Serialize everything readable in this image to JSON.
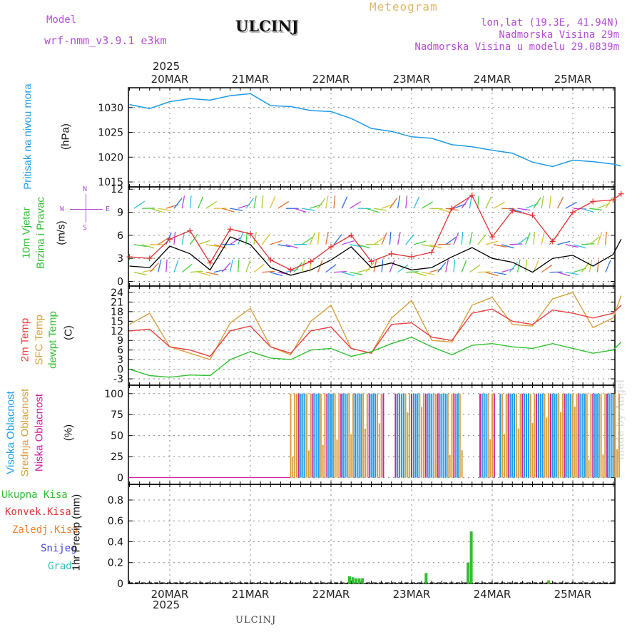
{
  "header": {
    "model_label": "Model",
    "model_name": "wrf-nmm_v3.9.1 e3km",
    "station": "ULCINJ",
    "meteogram": "Meteogram",
    "lonlat": "lon,lat (19.3E, 41.94N)",
    "elevation": "Nadmorska Visina 29m",
    "model_elevation": "Nadmorska Visina u modelu 29.0839m",
    "year_top": "2025",
    "year_bottom": "2025",
    "footer_station": "ULCINJ",
    "credit": "made by Angel"
  },
  "colors": {
    "pressure": "#1e9be6",
    "wind_speed": "#000000",
    "gust": "#e03030",
    "t2m": "#e84040",
    "sfc": "#d8a040",
    "dew": "#30c030",
    "high": "#1e9be6",
    "mid": "#d8a040",
    "low": "#d020a0",
    "precip_total": "#30c030",
    "precip_conv": "#e03030",
    "precip_frz": "#f08030",
    "precip_snow": "#4040e0",
    "precip_grad": "#30c0c0"
  },
  "chart_data": [
    {
      "type": "line",
      "title": "Pritisak na nivou mora",
      "ylabel": "(hPa)",
      "x_dates": [
        "20MAR",
        "21MAR",
        "22MAR",
        "23MAR",
        "24MAR",
        "25MAR"
      ],
      "yticks": [
        1015,
        1020,
        1025,
        1030
      ],
      "ylim": [
        1014,
        1034
      ],
      "series": [
        {
          "name": "pressure",
          "x": [
            0.0,
            0.25,
            0.5,
            0.75,
            1.0,
            1.25,
            1.5,
            1.75,
            2.0,
            2.25,
            2.5,
            2.75,
            3.0,
            3.25,
            3.5,
            3.75,
            4.0,
            4.25,
            4.5,
            4.75,
            5.0,
            5.25,
            5.5,
            5.75,
            6.0,
            6.1
          ],
          "values": [
            1030.6,
            1029.8,
            1031.2,
            1031.8,
            1031.5,
            1032.4,
            1032.8,
            1030.4,
            1030.2,
            1029.4,
            1029.2,
            1027.8,
            1025.8,
            1025.2,
            1024.1,
            1023.8,
            1022.5,
            1022.1,
            1021.4,
            1020.8,
            1019.0,
            1018.1,
            1019.4,
            1019.1,
            1018.6,
            1018.2
          ]
        }
      ]
    },
    {
      "type": "line",
      "title": "10m Vjetar Brzina i Pravac",
      "ylabel": "(m/s)",
      "compass": [
        "N",
        "W",
        "E",
        "S"
      ],
      "yticks": [
        0,
        3,
        6,
        9,
        12
      ],
      "ylim": [
        -0.6,
        12.3
      ],
      "series": [
        {
          "name": "wind speed",
          "x": [
            0.0,
            0.25,
            0.5,
            0.75,
            1.0,
            1.25,
            1.5,
            1.75,
            2.0,
            2.25,
            2.5,
            2.75,
            3.0,
            3.25,
            3.5,
            3.75,
            4.0,
            4.25,
            4.5,
            4.75,
            5.0,
            5.25,
            5.5,
            5.75,
            6.0,
            6.1
          ],
          "values": [
            2.0,
            1.8,
            4.6,
            3.6,
            1.5,
            5.8,
            4.8,
            1.8,
            0.8,
            1.5,
            2.8,
            4.5,
            1.8,
            2.4,
            1.5,
            1.8,
            3.2,
            4.4,
            3.0,
            2.5,
            1.2,
            3.0,
            3.4,
            2.0,
            3.5,
            5.5
          ]
        },
        {
          "name": "gust",
          "x": [
            0.0,
            0.25,
            0.5,
            0.75,
            1.0,
            1.25,
            1.5,
            1.75,
            2.0,
            2.25,
            2.5,
            2.75,
            3.0,
            3.25,
            3.5,
            3.75,
            4.0,
            4.25,
            4.5,
            4.75,
            5.0,
            5.25,
            5.5,
            5.75,
            6.0,
            6.1
          ],
          "values": [
            3.2,
            3.0,
            5.5,
            6.6,
            2.4,
            6.8,
            6.2,
            2.8,
            1.5,
            2.6,
            4.5,
            6.0,
            2.6,
            3.6,
            3.2,
            3.8,
            9.5,
            11.2,
            5.8,
            9.2,
            8.6,
            5.2,
            9.0,
            10.4,
            10.6,
            11.4
          ]
        }
      ]
    },
    {
      "type": "line",
      "title": "2m Temp / SFC Temp / dewpt Temp",
      "ylabel": "(C)",
      "yticks": [
        -3,
        0,
        3,
        6,
        9,
        12,
        15,
        18,
        21,
        24
      ],
      "ylim": [
        -5,
        26
      ],
      "series": [
        {
          "name": "2m Temp",
          "x": [
            0.0,
            0.25,
            0.5,
            0.75,
            1.0,
            1.25,
            1.5,
            1.75,
            2.0,
            2.25,
            2.5,
            2.75,
            3.0,
            3.25,
            3.5,
            3.75,
            4.0,
            4.25,
            4.5,
            4.75,
            5.0,
            5.25,
            5.5,
            5.75,
            6.0,
            6.1
          ],
          "values": [
            12.0,
            12.5,
            7.0,
            6.0,
            4.0,
            12.0,
            13.5,
            7.0,
            5.0,
            12.0,
            13.2,
            6.5,
            5.0,
            14.0,
            14.5,
            10.0,
            9.0,
            17.5,
            18.8,
            15.0,
            14.0,
            18.5,
            17.5,
            16.0,
            17.5,
            20.0
          ]
        },
        {
          "name": "SFC Temp",
          "x": [
            0.0,
            0.25,
            0.5,
            0.75,
            1.0,
            1.25,
            1.5,
            1.75,
            2.0,
            2.25,
            2.5,
            2.75,
            3.0,
            3.25,
            3.5,
            3.75,
            4.0,
            4.25,
            4.5,
            4.75,
            5.0,
            5.25,
            5.5,
            5.75,
            6.0,
            6.1
          ],
          "values": [
            14.0,
            17.5,
            7.0,
            5.0,
            3.0,
            14.5,
            19.0,
            7.0,
            4.5,
            15.0,
            20.0,
            6.5,
            5.0,
            16.0,
            21.5,
            9.0,
            8.5,
            20.0,
            22.5,
            14.0,
            13.5,
            22.0,
            24.0,
            13.0,
            16.0,
            23.0
          ]
        },
        {
          "name": "dewpt Temp",
          "x": [
            0.0,
            0.25,
            0.5,
            0.75,
            1.0,
            1.25,
            1.5,
            1.75,
            2.0,
            2.25,
            2.5,
            2.75,
            3.0,
            3.25,
            3.5,
            3.75,
            4.0,
            4.25,
            4.5,
            4.75,
            5.0,
            5.25,
            5.5,
            5.75,
            6.0,
            6.1
          ],
          "values": [
            0.0,
            -2.0,
            -2.5,
            -1.8,
            -2.0,
            3.0,
            5.5,
            3.5,
            3.0,
            6.0,
            6.5,
            4.0,
            5.5,
            8.0,
            10.0,
            7.0,
            4.5,
            7.5,
            8.0,
            7.0,
            6.5,
            8.0,
            6.5,
            5.0,
            6.0,
            8.5
          ]
        }
      ]
    },
    {
      "type": "bar",
      "title": "Visoka / Srednja / Niska Oblacnost",
      "ylabel": "(%)",
      "yticks": [
        0,
        25,
        50,
        75,
        100
      ],
      "ylim": [
        -8,
        110
      ],
      "cloudy_intervals": [
        [
          2.0,
          2.8
        ],
        [
          2.8,
          3.15
        ],
        [
          3.3,
          3.8
        ],
        [
          3.8,
          4.15
        ],
        [
          4.35,
          4.55
        ],
        [
          4.6,
          5.15
        ],
        [
          5.15,
          6.1
        ]
      ],
      "baseline_percent": 0
    },
    {
      "type": "bar",
      "title": "1hr Precip",
      "ylabel": "(mm)",
      "yticks": [
        0,
        0.2,
        0.4,
        0.6,
        0.8
      ],
      "ylim": [
        0,
        0.95
      ],
      "legend": [
        "Ukupna Kisa",
        "Konvek.Kisa",
        "Zaledj.Kisa",
        "Snijeg",
        "Grad"
      ],
      "bars": [
        {
          "x": 2.73,
          "value": 0.07
        },
        {
          "x": 2.77,
          "value": 0.06
        },
        {
          "x": 2.81,
          "value": 0.05
        },
        {
          "x": 2.85,
          "value": 0.05
        },
        {
          "x": 2.89,
          "value": 0.05
        },
        {
          "x": 3.68,
          "value": 0.1
        },
        {
          "x": 4.2,
          "value": 0.2
        },
        {
          "x": 4.24,
          "value": 0.5
        },
        {
          "x": 5.2,
          "value": 0.03
        }
      ]
    }
  ],
  "panel_labels": {
    "pressure": "Pritisak na nivou mora",
    "wind_1": "10m Vjetar",
    "wind_2": "Brzina i Pravac",
    "temp_1": "2m Temp",
    "temp_2": "SFC Temp",
    "temp_3": "dewpt Temp",
    "cloud_1": "Visoka Oblacnost",
    "cloud_2": "Srednja Oblacnost",
    "cloud_3": "Niska Oblacnost",
    "precip_1hr": "1hr Precip"
  }
}
